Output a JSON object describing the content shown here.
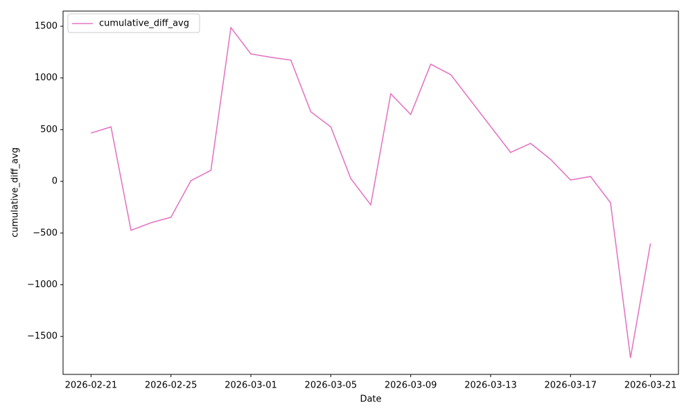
{
  "chart_data": {
    "type": "line",
    "xlabel": "Date",
    "ylabel": "cumulative_diff_avg",
    "x": [
      "2026-02-21",
      "2026-02-22",
      "2026-02-23",
      "2026-02-24",
      "2026-02-25",
      "2026-02-26",
      "2026-02-27",
      "2026-02-28",
      "2026-03-01",
      "2026-03-02",
      "2026-03-03",
      "2026-03-04",
      "2026-03-05",
      "2026-03-06",
      "2026-03-07",
      "2026-03-08",
      "2026-03-09",
      "2026-03-10",
      "2026-03-11",
      "2026-03-12",
      "2026-03-13",
      "2026-03-14",
      "2026-03-15",
      "2026-03-16",
      "2026-03-17",
      "2026-03-18",
      "2026-03-19",
      "2026-03-20",
      "2026-03-21"
    ],
    "series": [
      {
        "name": "cumulative_diff_avg",
        "color": "#e377c2",
        "values": [
          467,
          527,
          -473,
          -400,
          -347,
          7,
          107,
          1487,
          1233,
          1200,
          1173,
          673,
          527,
          27,
          -227,
          847,
          647,
          1133,
          1033,
          782,
          531,
          280,
          367,
          213,
          13,
          47,
          -207,
          -1707,
          -600
        ]
      }
    ],
    "ylim": [
      -1867,
      1647
    ],
    "yticks": [
      {
        "value": -1500,
        "label": "−1500"
      },
      {
        "value": -1000,
        "label": "−1000"
      },
      {
        "value": -500,
        "label": "−500"
      },
      0,
      500,
      1000,
      1500
    ],
    "xticks": [
      "2026-02-21",
      "2026-02-25",
      "2026-03-01",
      "2026-03-05",
      "2026-03-09",
      "2026-03-13",
      "2026-03-17",
      "2026-03-21"
    ],
    "legend": "upper left",
    "grid": false
  }
}
